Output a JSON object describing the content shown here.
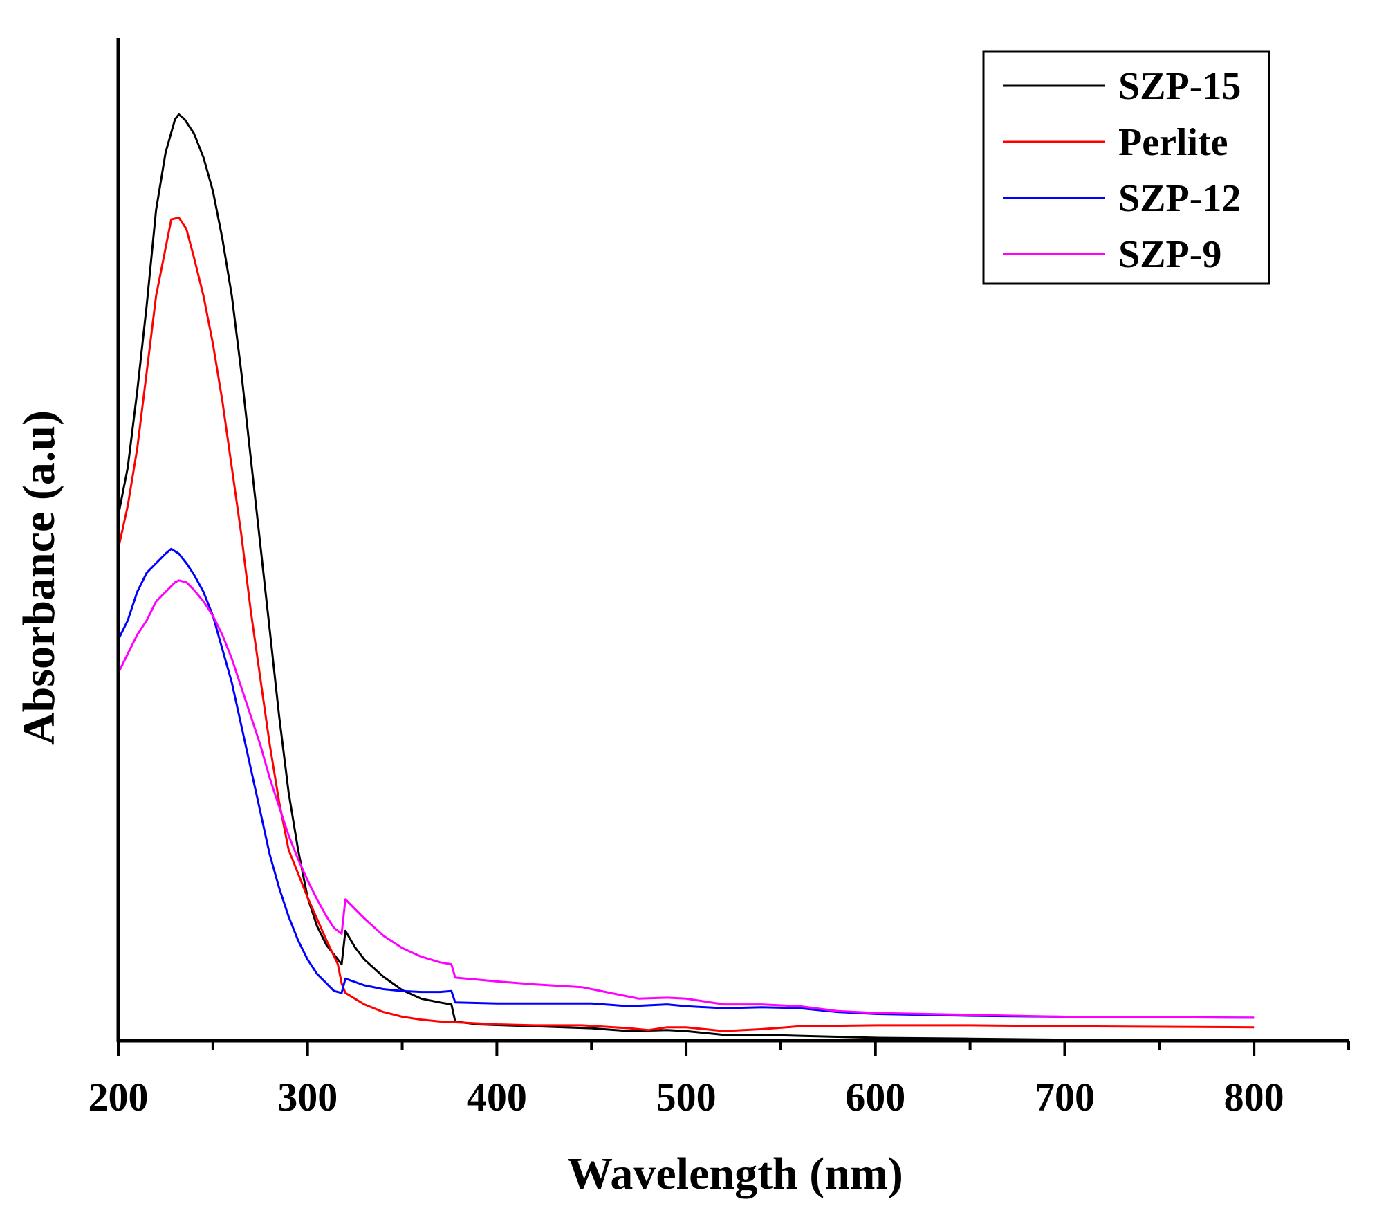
{
  "chart_data": {
    "type": "line",
    "title": "",
    "xlabel": "Wavelength (nm)",
    "ylabel": "Absorbance (a.u)",
    "xlim": [
      200,
      850
    ],
    "ylim": [
      0,
      1.05
    ],
    "xticks": [
      200,
      300,
      400,
      500,
      600,
      700,
      800
    ],
    "yticks": [],
    "grid": false,
    "legend_position": "top-right",
    "series": [
      {
        "name": "SZP-15",
        "color": "#000000",
        "points": [
          [
            200,
            0.55
          ],
          [
            205,
            0.6
          ],
          [
            210,
            0.68
          ],
          [
            215,
            0.77
          ],
          [
            220,
            0.87
          ],
          [
            225,
            0.93
          ],
          [
            230,
            0.965
          ],
          [
            232,
            0.97
          ],
          [
            235,
            0.965
          ],
          [
            240,
            0.95
          ],
          [
            245,
            0.925
          ],
          [
            250,
            0.89
          ],
          [
            255,
            0.84
          ],
          [
            260,
            0.78
          ],
          [
            265,
            0.7
          ],
          [
            270,
            0.61
          ],
          [
            275,
            0.52
          ],
          [
            280,
            0.43
          ],
          [
            285,
            0.34
          ],
          [
            290,
            0.26
          ],
          [
            295,
            0.2
          ],
          [
            300,
            0.15
          ],
          [
            305,
            0.12
          ],
          [
            310,
            0.1
          ],
          [
            316,
            0.085
          ],
          [
            318,
            0.08
          ],
          [
            320,
            0.115
          ],
          [
            325,
            0.098
          ],
          [
            330,
            0.085
          ],
          [
            340,
            0.067
          ],
          [
            350,
            0.053
          ],
          [
            360,
            0.044
          ],
          [
            370,
            0.04
          ],
          [
            376,
            0.038
          ],
          [
            378,
            0.02
          ],
          [
            390,
            0.017
          ],
          [
            420,
            0.015
          ],
          [
            450,
            0.013
          ],
          [
            470,
            0.01
          ],
          [
            490,
            0.011
          ],
          [
            500,
            0.01
          ],
          [
            520,
            0.006
          ],
          [
            540,
            0.006
          ],
          [
            560,
            0.005
          ],
          [
            600,
            0.003
          ],
          [
            650,
            0.002
          ],
          [
            700,
            0.001
          ],
          [
            800,
            0.001
          ]
        ]
      },
      {
        "name": "Perlite",
        "color": "#ff0000",
        "points": [
          [
            200,
            0.515
          ],
          [
            205,
            0.56
          ],
          [
            210,
            0.62
          ],
          [
            215,
            0.7
          ],
          [
            220,
            0.78
          ],
          [
            225,
            0.83
          ],
          [
            228,
            0.86
          ],
          [
            232,
            0.862
          ],
          [
            236,
            0.85
          ],
          [
            240,
            0.82
          ],
          [
            245,
            0.78
          ],
          [
            250,
            0.73
          ],
          [
            255,
            0.67
          ],
          [
            260,
            0.6
          ],
          [
            265,
            0.53
          ],
          [
            270,
            0.45
          ],
          [
            275,
            0.38
          ],
          [
            280,
            0.31
          ],
          [
            285,
            0.25
          ],
          [
            290,
            0.2
          ],
          [
            300,
            0.15
          ],
          [
            310,
            0.105
          ],
          [
            316,
            0.08
          ],
          [
            318,
            0.06
          ],
          [
            320,
            0.05
          ],
          [
            330,
            0.038
          ],
          [
            340,
            0.03
          ],
          [
            350,
            0.025
          ],
          [
            360,
            0.022
          ],
          [
            370,
            0.02
          ],
          [
            380,
            0.019
          ],
          [
            400,
            0.017
          ],
          [
            420,
            0.016
          ],
          [
            445,
            0.016
          ],
          [
            470,
            0.013
          ],
          [
            480,
            0.011
          ],
          [
            490,
            0.014
          ],
          [
            500,
            0.014
          ],
          [
            520,
            0.01
          ],
          [
            540,
            0.012
          ],
          [
            560,
            0.015
          ],
          [
            600,
            0.016
          ],
          [
            650,
            0.016
          ],
          [
            700,
            0.015
          ],
          [
            800,
            0.014
          ]
        ]
      },
      {
        "name": "SZP-12",
        "color": "#0000ff",
        "points": [
          [
            200,
            0.42
          ],
          [
            205,
            0.44
          ],
          [
            210,
            0.47
          ],
          [
            215,
            0.49
          ],
          [
            220,
            0.5
          ],
          [
            225,
            0.51
          ],
          [
            228,
            0.515
          ],
          [
            232,
            0.51
          ],
          [
            236,
            0.5
          ],
          [
            240,
            0.488
          ],
          [
            245,
            0.47
          ],
          [
            250,
            0.445
          ],
          [
            255,
            0.41
          ],
          [
            260,
            0.375
          ],
          [
            265,
            0.33
          ],
          [
            270,
            0.285
          ],
          [
            275,
            0.24
          ],
          [
            280,
            0.195
          ],
          [
            285,
            0.16
          ],
          [
            290,
            0.13
          ],
          [
            295,
            0.105
          ],
          [
            300,
            0.085
          ],
          [
            305,
            0.07
          ],
          [
            310,
            0.06
          ],
          [
            314,
            0.052
          ],
          [
            318,
            0.05
          ],
          [
            320,
            0.065
          ],
          [
            330,
            0.058
          ],
          [
            340,
            0.054
          ],
          [
            350,
            0.052
          ],
          [
            360,
            0.051
          ],
          [
            370,
            0.051
          ],
          [
            376,
            0.052
          ],
          [
            378,
            0.04
          ],
          [
            400,
            0.039
          ],
          [
            430,
            0.039
          ],
          [
            450,
            0.039
          ],
          [
            470,
            0.036
          ],
          [
            490,
            0.038
          ],
          [
            500,
            0.036
          ],
          [
            520,
            0.034
          ],
          [
            540,
            0.035
          ],
          [
            560,
            0.034
          ],
          [
            580,
            0.03
          ],
          [
            600,
            0.028
          ],
          [
            650,
            0.026
          ],
          [
            700,
            0.025
          ],
          [
            800,
            0.024
          ]
        ]
      },
      {
        "name": "SZP-9",
        "color": "#ff00ff",
        "points": [
          [
            200,
            0.385
          ],
          [
            205,
            0.405
          ],
          [
            210,
            0.425
          ],
          [
            215,
            0.44
          ],
          [
            220,
            0.46
          ],
          [
            225,
            0.47
          ],
          [
            230,
            0.48
          ],
          [
            232,
            0.482
          ],
          [
            236,
            0.48
          ],
          [
            240,
            0.472
          ],
          [
            245,
            0.46
          ],
          [
            250,
            0.445
          ],
          [
            255,
            0.425
          ],
          [
            260,
            0.4
          ],
          [
            265,
            0.37
          ],
          [
            270,
            0.34
          ],
          [
            275,
            0.31
          ],
          [
            280,
            0.275
          ],
          [
            285,
            0.245
          ],
          [
            290,
            0.215
          ],
          [
            295,
            0.19
          ],
          [
            300,
            0.168
          ],
          [
            305,
            0.148
          ],
          [
            310,
            0.13
          ],
          [
            314,
            0.118
          ],
          [
            318,
            0.112
          ],
          [
            320,
            0.148
          ],
          [
            330,
            0.128
          ],
          [
            340,
            0.11
          ],
          [
            350,
            0.097
          ],
          [
            360,
            0.088
          ],
          [
            370,
            0.082
          ],
          [
            376,
            0.08
          ],
          [
            378,
            0.066
          ],
          [
            400,
            0.062
          ],
          [
            420,
            0.059
          ],
          [
            445,
            0.056
          ],
          [
            460,
            0.05
          ],
          [
            475,
            0.044
          ],
          [
            490,
            0.045
          ],
          [
            500,
            0.044
          ],
          [
            520,
            0.038
          ],
          [
            540,
            0.038
          ],
          [
            560,
            0.036
          ],
          [
            580,
            0.031
          ],
          [
            600,
            0.029
          ],
          [
            650,
            0.027
          ],
          [
            700,
            0.025
          ],
          [
            800,
            0.024
          ]
        ]
      }
    ]
  }
}
